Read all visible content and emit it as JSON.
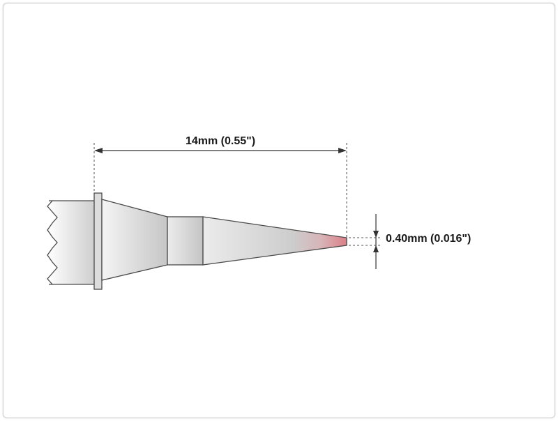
{
  "diagram": {
    "length_label": "14mm (0.55\")",
    "diameter_label": "0.40mm (0.016\")",
    "colors": {
      "outline": "#4a4a4a",
      "body_light": "#f2f2f2",
      "body_dark": "#b8b8b8",
      "tip": "#d9848c",
      "dimension_line": "#333333"
    }
  }
}
